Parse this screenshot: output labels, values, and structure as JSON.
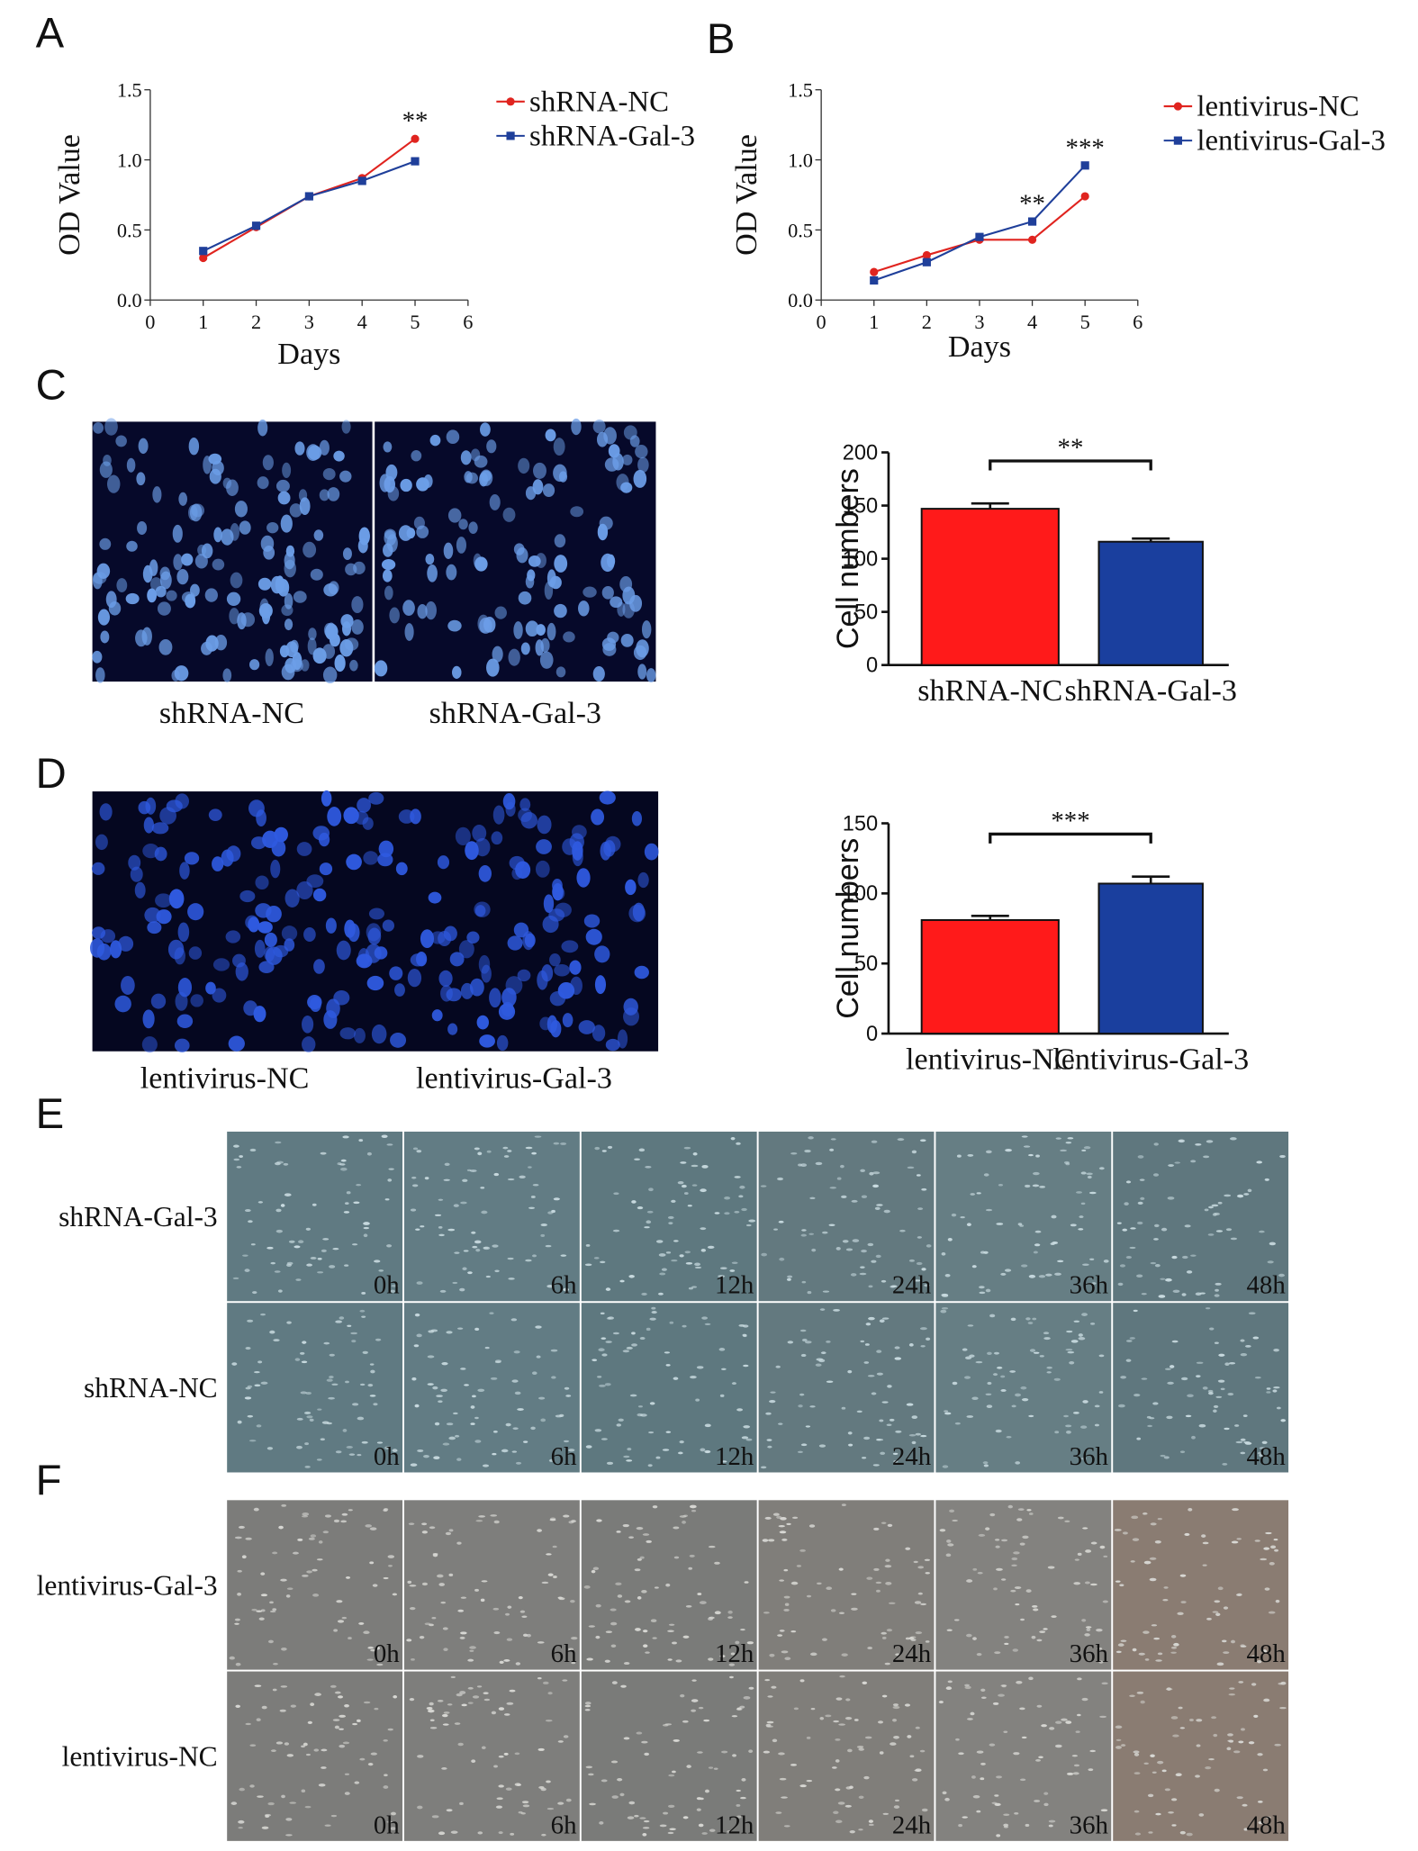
{
  "chart_data": [
    {
      "type": "line",
      "xlabel": "Days",
      "ylabel": "OD Value",
      "x": [
        1,
        2,
        3,
        4,
        5
      ],
      "series": [
        {
          "name": "shRNA-NC",
          "color": "#e0241f",
          "marker": "circle",
          "values": [
            0.3,
            0.52,
            0.74,
            0.87,
            1.15
          ]
        },
        {
          "name": "shRNA-Gal-3",
          "color": "#1f3f9a",
          "marker": "square",
          "values": [
            0.35,
            0.53,
            0.74,
            0.85,
            0.99
          ]
        }
      ],
      "xlim": [
        0,
        6
      ],
      "xticks": [
        0,
        1,
        2,
        3,
        4,
        5,
        6
      ],
      "ylim": [
        0,
        1.5
      ],
      "yticks": [
        {
          "value": 0,
          "label": "0.0"
        },
        0.5,
        {
          "value": 1,
          "label": "1.0"
        },
        1.5
      ],
      "annotations": [
        {
          "text": "**",
          "x": 5
        }
      ]
    },
    {
      "type": "line",
      "xlabel": "Days",
      "ylabel": "OD Value",
      "x": [
        1,
        2,
        3,
        4,
        5
      ],
      "series": [
        {
          "name": "lentivirus-NC",
          "color": "#e0241f",
          "marker": "circle",
          "values": [
            0.2,
            0.32,
            0.43,
            0.43,
            0.74
          ]
        },
        {
          "name": "lentivirus-Gal-3",
          "color": "#1f3f9a",
          "marker": "square",
          "values": [
            0.14,
            0.27,
            0.45,
            0.56,
            0.96
          ]
        }
      ],
      "xlim": [
        0,
        6
      ],
      "xticks": [
        0,
        1,
        2,
        3,
        4,
        5,
        6
      ],
      "ylim": [
        0,
        1.5
      ],
      "yticks": [
        {
          "value": 0,
          "label": "0.0"
        },
        0.5,
        {
          "value": 1,
          "label": "1.0"
        },
        1.5
      ],
      "annotations": [
        {
          "text": "**",
          "x": 4
        },
        {
          "text": "***",
          "x": 5
        }
      ]
    },
    {
      "type": "bar",
      "ylabel": "Cell numbers",
      "categories": [
        "shRNA-NC",
        "shRNA-Gal-3"
      ],
      "values": [
        147,
        116
      ],
      "errors": [
        5,
        3
      ],
      "colors": [
        "#ff1a1a",
        "#1a3f9e"
      ],
      "ylim": [
        0,
        200
      ],
      "yticks": [
        0,
        50,
        100,
        150,
        200
      ],
      "significance": "**"
    },
    {
      "type": "bar",
      "ylabel": "Cell numbers",
      "categories": [
        "lentivirus-NC",
        "lentivirus-Gal-3"
      ],
      "values": [
        81,
        107
      ],
      "errors": [
        3,
        5
      ],
      "colors": [
        "#ff1a1a",
        "#1a3f9e"
      ],
      "ylim": [
        0,
        150
      ],
      "yticks": [
        0,
        50,
        100,
        150
      ],
      "significance": "***"
    }
  ],
  "figure": {
    "panel_letters": [
      "A",
      "B",
      "C",
      "D",
      "E",
      "F"
    ],
    "c_images": [
      "shRNA-NC",
      "shRNA-Gal-3"
    ],
    "d_images": [
      "lentivirus-NC",
      "lentivirus-Gal-3"
    ],
    "times": [
      "0h",
      "6h",
      "12h",
      "24h",
      "36h",
      "48h"
    ],
    "e_rows": [
      "shRNA-Gal-3",
      "shRNA-NC"
    ],
    "f_rows": [
      "lentivirus-Gal-3",
      "lentivirus-NC"
    ]
  }
}
